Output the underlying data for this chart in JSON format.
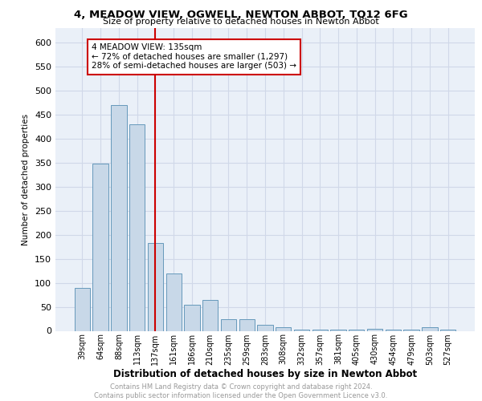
{
  "title": "4, MEADOW VIEW, OGWELL, NEWTON ABBOT, TQ12 6FG",
  "subtitle": "Size of property relative to detached houses in Newton Abbot",
  "xlabel": "Distribution of detached houses by size in Newton Abbot",
  "ylabel": "Number of detached properties",
  "categories": [
    "39sqm",
    "64sqm",
    "88sqm",
    "113sqm",
    "137sqm",
    "161sqm",
    "186sqm",
    "210sqm",
    "235sqm",
    "259sqm",
    "283sqm",
    "308sqm",
    "332sqm",
    "357sqm",
    "381sqm",
    "405sqm",
    "430sqm",
    "454sqm",
    "479sqm",
    "503sqm",
    "527sqm"
  ],
  "values": [
    90,
    348,
    470,
    430,
    183,
    120,
    55,
    65,
    25,
    25,
    12,
    8,
    2,
    2,
    2,
    2,
    5,
    2,
    2,
    7,
    2
  ],
  "bar_color": "#c8d8e8",
  "bar_edge_color": "#6699bb",
  "vline_color": "#cc0000",
  "vline_index": 4,
  "annotation_text": "4 MEADOW VIEW: 135sqm\n← 72% of detached houses are smaller (1,297)\n28% of semi-detached houses are larger (503) →",
  "annotation_box_color": "#ffffff",
  "annotation_box_edge": "#cc0000",
  "grid_color": "#d0d8e8",
  "background_color": "#eaf0f8",
  "footer_text": "Contains HM Land Registry data © Crown copyright and database right 2024.\nContains public sector information licensed under the Open Government Licence v3.0.",
  "ylim": [
    0,
    630
  ],
  "yticks": [
    0,
    50,
    100,
    150,
    200,
    250,
    300,
    350,
    400,
    450,
    500,
    550,
    600
  ]
}
